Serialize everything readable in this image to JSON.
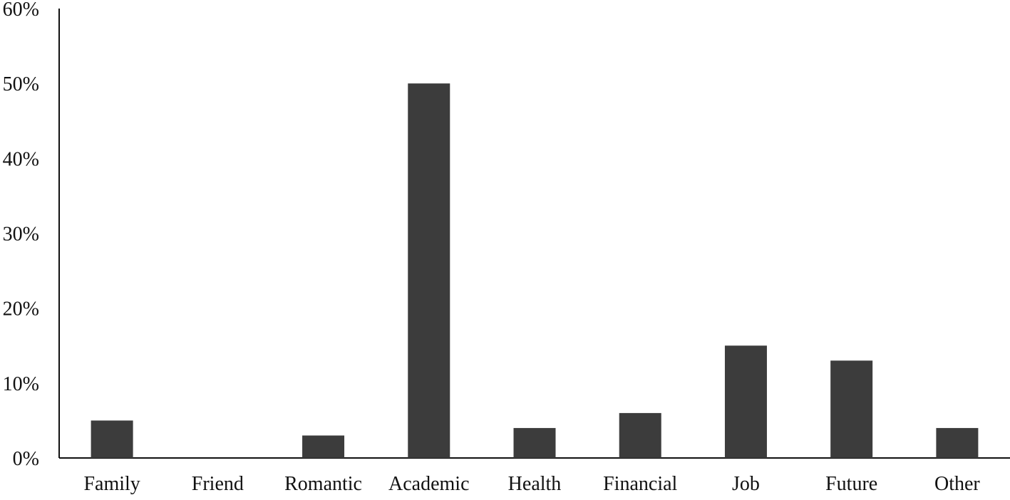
{
  "chart_data": {
    "type": "bar",
    "categories": [
      "Family",
      "Friend",
      "Romantic",
      "Academic",
      "Health",
      "Financial",
      "Job",
      "Future",
      "Other"
    ],
    "values": [
      5,
      0,
      3,
      50,
      4,
      6,
      15,
      13,
      4
    ],
    "ylim": [
      0,
      60
    ],
    "yticks": [
      "0%",
      "10%",
      "20%",
      "30%",
      "40%",
      "50%",
      "60%"
    ],
    "grid": false,
    "legend": "none",
    "title": "",
    "xlabel": "",
    "ylabel": ""
  },
  "colors": {
    "bar": "#3c3c3c",
    "axis": "#111111"
  }
}
